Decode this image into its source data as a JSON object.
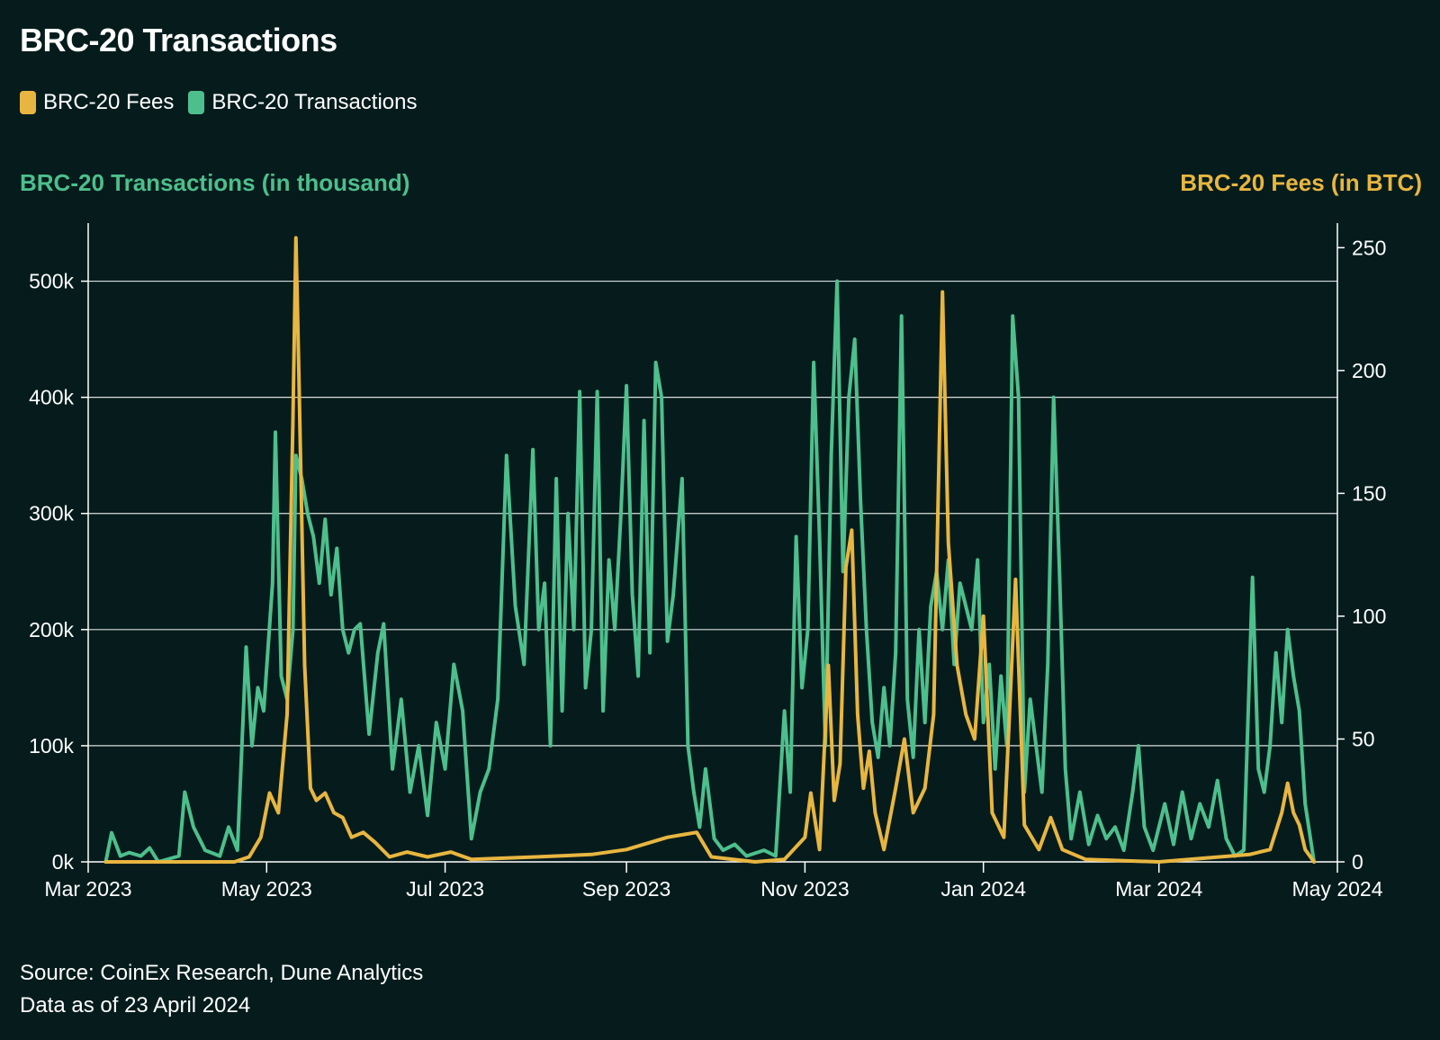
{
  "title": "BRC-20 Transactions",
  "legend": [
    {
      "label": "BRC-20 Fees",
      "color": "#e8b640"
    },
    {
      "label": "BRC-20 Transactions",
      "color": "#4dbf8c"
    }
  ],
  "left_axis_title": "BRC-20 Transactions (in thousand)",
  "right_axis_title": "BRC-20 Fees (in BTC)",
  "footer": {
    "source": "Source: CoinEx Research, Dune Analytics",
    "asof": "Data as of 23 April 2024"
  },
  "chart_data": {
    "type": "line",
    "title": "BRC-20 Transactions",
    "x_axis": {
      "type": "date",
      "range": [
        "2023-03-01",
        "2024-05-01"
      ],
      "tick_dates": [
        "2023-03-01",
        "2023-05-01",
        "2023-07-01",
        "2023-09-01",
        "2023-11-01",
        "2024-01-01",
        "2024-03-01",
        "2024-05-01"
      ],
      "tick_labels": [
        "Mar 2023",
        "May 2023",
        "Jul 2023",
        "Sep 2023",
        "Nov 2023",
        "Jan 2024",
        "Mar 2024",
        "May 2024"
      ]
    },
    "y_left": {
      "label": "BRC-20 Transactions (in thousand)",
      "range": [
        0,
        550000
      ],
      "ticks": [
        0,
        100000,
        200000,
        300000,
        400000,
        500000
      ],
      "tick_labels": [
        "0k",
        "100k",
        "200k",
        "300k",
        "400k",
        "500k"
      ]
    },
    "y_right": {
      "label": "BRC-20 Fees (in BTC)",
      "range": [
        0,
        260
      ],
      "ticks": [
        0,
        50,
        100,
        150,
        200,
        250
      ],
      "tick_labels": [
        "0",
        "50",
        "100",
        "150",
        "200",
        "250"
      ]
    },
    "grid": "horizontal",
    "legend_position": "top-left",
    "series": [
      {
        "name": "BRC-20 Transactions",
        "axis": "left",
        "color": "#4dbf8c",
        "points": [
          [
            "2023-03-07",
            0
          ],
          [
            "2023-03-09",
            25000
          ],
          [
            "2023-03-12",
            5000
          ],
          [
            "2023-03-15",
            8000
          ],
          [
            "2023-03-19",
            5000
          ],
          [
            "2023-03-22",
            12000
          ],
          [
            "2023-03-25",
            0
          ],
          [
            "2023-04-01",
            5000
          ],
          [
            "2023-04-03",
            60000
          ],
          [
            "2023-04-06",
            30000
          ],
          [
            "2023-04-10",
            10000
          ],
          [
            "2023-04-15",
            5000
          ],
          [
            "2023-04-18",
            30000
          ],
          [
            "2023-04-21",
            10000
          ],
          [
            "2023-04-24",
            185000
          ],
          [
            "2023-04-26",
            100000
          ],
          [
            "2023-04-28",
            150000
          ],
          [
            "2023-04-30",
            130000
          ],
          [
            "2023-05-03",
            240000
          ],
          [
            "2023-05-04",
            370000
          ],
          [
            "2023-05-06",
            160000
          ],
          [
            "2023-05-08",
            140000
          ],
          [
            "2023-05-10",
            200000
          ],
          [
            "2023-05-11",
            350000
          ],
          [
            "2023-05-13",
            330000
          ],
          [
            "2023-05-15",
            300000
          ],
          [
            "2023-05-17",
            280000
          ],
          [
            "2023-05-19",
            240000
          ],
          [
            "2023-05-21",
            295000
          ],
          [
            "2023-05-23",
            230000
          ],
          [
            "2023-05-25",
            270000
          ],
          [
            "2023-05-27",
            200000
          ],
          [
            "2023-05-29",
            180000
          ],
          [
            "2023-05-31",
            200000
          ],
          [
            "2023-06-02",
            205000
          ],
          [
            "2023-06-05",
            110000
          ],
          [
            "2023-06-08",
            180000
          ],
          [
            "2023-06-10",
            205000
          ],
          [
            "2023-06-13",
            80000
          ],
          [
            "2023-06-16",
            140000
          ],
          [
            "2023-06-19",
            60000
          ],
          [
            "2023-06-22",
            100000
          ],
          [
            "2023-06-25",
            40000
          ],
          [
            "2023-06-28",
            120000
          ],
          [
            "2023-07-01",
            80000
          ],
          [
            "2023-07-04",
            170000
          ],
          [
            "2023-07-07",
            130000
          ],
          [
            "2023-07-10",
            20000
          ],
          [
            "2023-07-13",
            60000
          ],
          [
            "2023-07-16",
            80000
          ],
          [
            "2023-07-19",
            140000
          ],
          [
            "2023-07-22",
            350000
          ],
          [
            "2023-07-25",
            220000
          ],
          [
            "2023-07-28",
            170000
          ],
          [
            "2023-07-31",
            355000
          ],
          [
            "2023-08-02",
            200000
          ],
          [
            "2023-08-04",
            240000
          ],
          [
            "2023-08-06",
            100000
          ],
          [
            "2023-08-08",
            330000
          ],
          [
            "2023-08-10",
            130000
          ],
          [
            "2023-08-12",
            300000
          ],
          [
            "2023-08-14",
            200000
          ],
          [
            "2023-08-16",
            405000
          ],
          [
            "2023-08-18",
            150000
          ],
          [
            "2023-08-20",
            200000
          ],
          [
            "2023-08-22",
            405000
          ],
          [
            "2023-08-24",
            130000
          ],
          [
            "2023-08-26",
            260000
          ],
          [
            "2023-08-28",
            200000
          ],
          [
            "2023-08-30",
            295000
          ],
          [
            "2023-09-01",
            410000
          ],
          [
            "2023-09-03",
            230000
          ],
          [
            "2023-09-05",
            160000
          ],
          [
            "2023-09-07",
            380000
          ],
          [
            "2023-09-09",
            180000
          ],
          [
            "2023-09-11",
            430000
          ],
          [
            "2023-09-13",
            400000
          ],
          [
            "2023-09-15",
            190000
          ],
          [
            "2023-09-17",
            230000
          ],
          [
            "2023-09-20",
            330000
          ],
          [
            "2023-09-22",
            100000
          ],
          [
            "2023-09-24",
            60000
          ],
          [
            "2023-09-26",
            30000
          ],
          [
            "2023-09-28",
            80000
          ],
          [
            "2023-10-01",
            20000
          ],
          [
            "2023-10-04",
            10000
          ],
          [
            "2023-10-08",
            15000
          ],
          [
            "2023-10-12",
            5000
          ],
          [
            "2023-10-18",
            10000
          ],
          [
            "2023-10-22",
            5000
          ],
          [
            "2023-10-25",
            130000
          ],
          [
            "2023-10-27",
            60000
          ],
          [
            "2023-10-29",
            280000
          ],
          [
            "2023-10-31",
            150000
          ],
          [
            "2023-11-02",
            200000
          ],
          [
            "2023-11-04",
            430000
          ],
          [
            "2023-11-06",
            280000
          ],
          [
            "2023-11-08",
            100000
          ],
          [
            "2023-11-10",
            350000
          ],
          [
            "2023-11-12",
            500000
          ],
          [
            "2023-11-14",
            250000
          ],
          [
            "2023-11-16",
            400000
          ],
          [
            "2023-11-18",
            450000
          ],
          [
            "2023-11-20",
            310000
          ],
          [
            "2023-11-22",
            200000
          ],
          [
            "2023-11-24",
            120000
          ],
          [
            "2023-11-26",
            90000
          ],
          [
            "2023-11-28",
            150000
          ],
          [
            "2023-11-30",
            100000
          ],
          [
            "2023-12-02",
            180000
          ],
          [
            "2023-12-04",
            470000
          ],
          [
            "2023-12-06",
            140000
          ],
          [
            "2023-12-08",
            90000
          ],
          [
            "2023-12-10",
            200000
          ],
          [
            "2023-12-12",
            120000
          ],
          [
            "2023-12-14",
            220000
          ],
          [
            "2023-12-16",
            250000
          ],
          [
            "2023-12-18",
            200000
          ],
          [
            "2023-12-20",
            260000
          ],
          [
            "2023-12-22",
            170000
          ],
          [
            "2023-12-24",
            240000
          ],
          [
            "2023-12-26",
            220000
          ],
          [
            "2023-12-28",
            200000
          ],
          [
            "2023-12-30",
            260000
          ],
          [
            "2024-01-01",
            120000
          ],
          [
            "2024-01-03",
            170000
          ],
          [
            "2024-01-05",
            80000
          ],
          [
            "2024-01-07",
            160000
          ],
          [
            "2024-01-09",
            100000
          ],
          [
            "2024-01-11",
            470000
          ],
          [
            "2024-01-13",
            400000
          ],
          [
            "2024-01-15",
            60000
          ],
          [
            "2024-01-17",
            140000
          ],
          [
            "2024-01-19",
            100000
          ],
          [
            "2024-01-21",
            60000
          ],
          [
            "2024-01-23",
            170000
          ],
          [
            "2024-01-25",
            400000
          ],
          [
            "2024-01-27",
            250000
          ],
          [
            "2024-01-29",
            80000
          ],
          [
            "2024-01-31",
            20000
          ],
          [
            "2024-02-03",
            60000
          ],
          [
            "2024-02-06",
            15000
          ],
          [
            "2024-02-09",
            40000
          ],
          [
            "2024-02-12",
            20000
          ],
          [
            "2024-02-15",
            30000
          ],
          [
            "2024-02-18",
            10000
          ],
          [
            "2024-02-21",
            60000
          ],
          [
            "2024-02-23",
            100000
          ],
          [
            "2024-02-25",
            30000
          ],
          [
            "2024-02-28",
            10000
          ],
          [
            "2024-03-03",
            50000
          ],
          [
            "2024-03-06",
            15000
          ],
          [
            "2024-03-09",
            60000
          ],
          [
            "2024-03-12",
            20000
          ],
          [
            "2024-03-15",
            50000
          ],
          [
            "2024-03-18",
            30000
          ],
          [
            "2024-03-21",
            70000
          ],
          [
            "2024-03-24",
            20000
          ],
          [
            "2024-03-27",
            5000
          ],
          [
            "2024-03-30",
            10000
          ],
          [
            "2024-04-02",
            245000
          ],
          [
            "2024-04-04",
            80000
          ],
          [
            "2024-04-06",
            60000
          ],
          [
            "2024-04-08",
            100000
          ],
          [
            "2024-04-10",
            180000
          ],
          [
            "2024-04-12",
            120000
          ],
          [
            "2024-04-14",
            200000
          ],
          [
            "2024-04-16",
            160000
          ],
          [
            "2024-04-18",
            130000
          ],
          [
            "2024-04-20",
            50000
          ],
          [
            "2024-04-23",
            0
          ]
        ]
      },
      {
        "name": "BRC-20 Fees",
        "axis": "right",
        "color": "#e8b640",
        "points": [
          [
            "2023-03-07",
            0
          ],
          [
            "2023-03-20",
            0
          ],
          [
            "2023-04-10",
            0
          ],
          [
            "2023-04-20",
            0
          ],
          [
            "2023-04-25",
            2
          ],
          [
            "2023-04-29",
            10
          ],
          [
            "2023-05-02",
            28
          ],
          [
            "2023-05-05",
            20
          ],
          [
            "2023-05-08",
            60
          ],
          [
            "2023-05-10",
            180
          ],
          [
            "2023-05-11",
            254
          ],
          [
            "2023-05-12",
            200
          ],
          [
            "2023-05-14",
            80
          ],
          [
            "2023-05-16",
            30
          ],
          [
            "2023-05-18",
            25
          ],
          [
            "2023-05-21",
            28
          ],
          [
            "2023-05-24",
            20
          ],
          [
            "2023-05-27",
            18
          ],
          [
            "2023-05-30",
            10
          ],
          [
            "2023-06-03",
            12
          ],
          [
            "2023-06-07",
            8
          ],
          [
            "2023-06-12",
            2
          ],
          [
            "2023-06-18",
            4
          ],
          [
            "2023-06-25",
            2
          ],
          [
            "2023-07-03",
            4
          ],
          [
            "2023-07-10",
            1
          ],
          [
            "2023-08-01",
            2
          ],
          [
            "2023-08-20",
            3
          ],
          [
            "2023-09-01",
            5
          ],
          [
            "2023-09-15",
            10
          ],
          [
            "2023-09-25",
            12
          ],
          [
            "2023-09-30",
            2
          ],
          [
            "2023-10-15",
            0
          ],
          [
            "2023-10-25",
            1
          ],
          [
            "2023-11-01",
            10
          ],
          [
            "2023-11-03",
            28
          ],
          [
            "2023-11-06",
            5
          ],
          [
            "2023-11-09",
            80
          ],
          [
            "2023-11-11",
            25
          ],
          [
            "2023-11-13",
            40
          ],
          [
            "2023-11-15",
            120
          ],
          [
            "2023-11-17",
            135
          ],
          [
            "2023-11-19",
            60
          ],
          [
            "2023-11-21",
            30
          ],
          [
            "2023-11-23",
            45
          ],
          [
            "2023-11-25",
            20
          ],
          [
            "2023-11-28",
            5
          ],
          [
            "2023-12-02",
            30
          ],
          [
            "2023-12-05",
            50
          ],
          [
            "2023-12-08",
            20
          ],
          [
            "2023-12-12",
            30
          ],
          [
            "2023-12-15",
            60
          ],
          [
            "2023-12-18",
            232
          ],
          [
            "2023-12-20",
            130
          ],
          [
            "2023-12-23",
            80
          ],
          [
            "2023-12-26",
            60
          ],
          [
            "2023-12-29",
            50
          ],
          [
            "2024-01-01",
            100
          ],
          [
            "2024-01-04",
            20
          ],
          [
            "2024-01-08",
            10
          ],
          [
            "2024-01-12",
            115
          ],
          [
            "2024-01-15",
            15
          ],
          [
            "2024-01-20",
            5
          ],
          [
            "2024-01-24",
            18
          ],
          [
            "2024-01-28",
            5
          ],
          [
            "2024-02-05",
            1
          ],
          [
            "2024-03-01",
            0
          ],
          [
            "2024-04-01",
            3
          ],
          [
            "2024-04-08",
            5
          ],
          [
            "2024-04-12",
            20
          ],
          [
            "2024-04-14",
            32
          ],
          [
            "2024-04-16",
            20
          ],
          [
            "2024-04-18",
            15
          ],
          [
            "2024-04-20",
            5
          ],
          [
            "2024-04-23",
            0
          ]
        ]
      }
    ]
  }
}
